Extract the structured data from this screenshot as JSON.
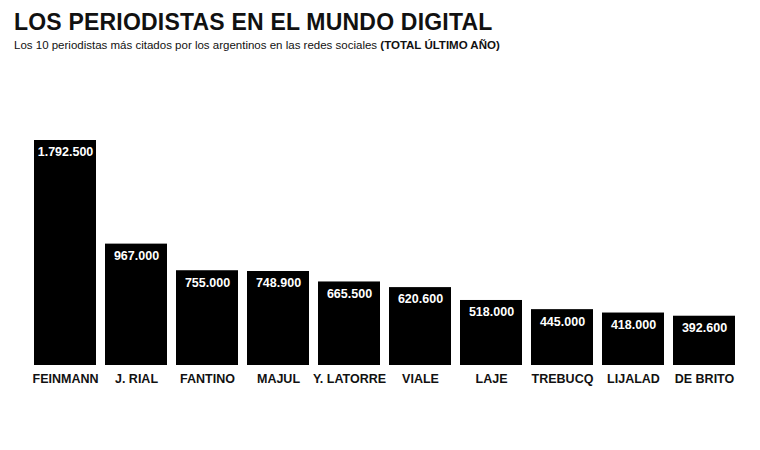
{
  "chart_data": {
    "type": "bar",
    "title": "LOS PERIODISTAS EN EL MUNDO DIGITAL",
    "subtitle": "Los 10 periodistas más citados por los argentinos en las redes sociales (TOTAL ÚLTIMO AÑO)",
    "categories": [
      "FEINMANN",
      "J. RIAL",
      "FANTINO",
      "MAJUL",
      "Y. LATORRE",
      "VIALE",
      "LAJE",
      "TREBUCQ",
      "LIJALAD",
      "DE BRITO"
    ],
    "values": [
      1792500,
      967000,
      755000,
      748900,
      665500,
      620600,
      518000,
      445000,
      418000,
      392600
    ],
    "value_labels": [
      "1.792.500",
      "967.000",
      "755.000",
      "748.900",
      "665.500",
      "620.600",
      "518.000",
      "445.000",
      "418.000",
      "392.600"
    ],
    "color": "#000000",
    "ylim": [
      0,
      1792500
    ],
    "data_labels": true,
    "tick_labels": "x",
    "grid": false
  }
}
